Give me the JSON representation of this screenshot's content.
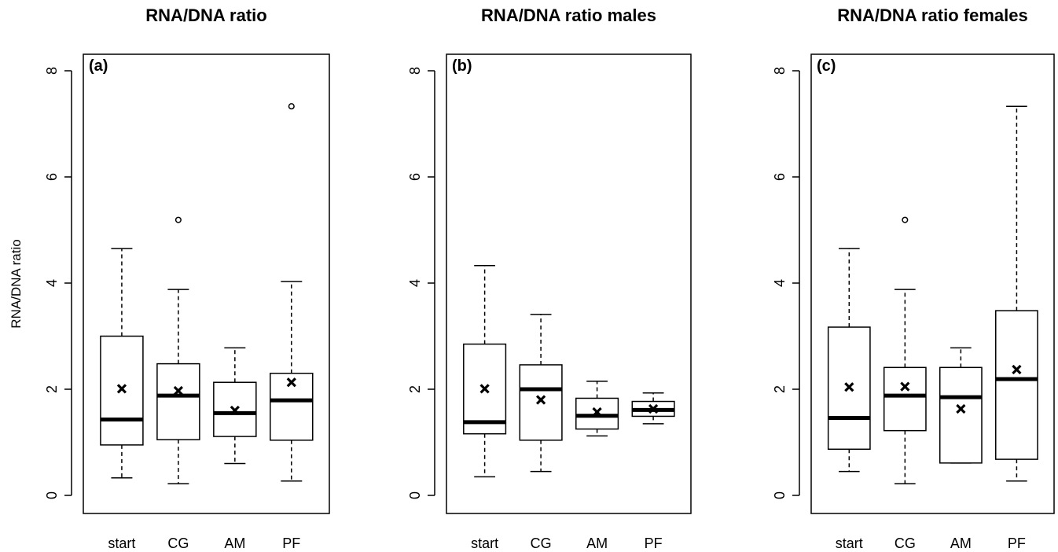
{
  "chart_data": [
    {
      "type": "box",
      "title": "RNA/DNA ratio",
      "panel_label": "(a)",
      "ylabel": "RNA/DNA ratio",
      "ylim": [
        0,
        8
      ],
      "yticks": [
        0,
        2,
        4,
        6,
        8
      ],
      "categories": [
        "start",
        "CG",
        "AM",
        "PF"
      ],
      "boxes": [
        {
          "category": "start",
          "min": 0.33,
          "q1": 0.95,
          "median": 1.43,
          "q3": 3.0,
          "max": 4.65,
          "mean": 2.01,
          "outliers": []
        },
        {
          "category": "CG",
          "min": 0.22,
          "q1": 1.05,
          "median": 1.88,
          "q3": 2.48,
          "max": 3.88,
          "mean": 1.97,
          "outliers": [
            5.19
          ]
        },
        {
          "category": "AM",
          "min": 0.6,
          "q1": 1.11,
          "median": 1.55,
          "q3": 2.13,
          "max": 2.78,
          "mean": 1.6,
          "outliers": []
        },
        {
          "category": "PF",
          "min": 0.27,
          "q1": 1.04,
          "median": 1.79,
          "q3": 2.3,
          "max": 4.03,
          "mean": 2.13,
          "outliers": [
            7.33
          ]
        }
      ]
    },
    {
      "type": "box",
      "title": "RNA/DNA ratio males",
      "panel_label": "(b)",
      "ylabel": "",
      "ylim": [
        0,
        8
      ],
      "yticks": [
        0,
        2,
        4,
        6,
        8
      ],
      "categories": [
        "start",
        "CG",
        "AM",
        "PF"
      ],
      "boxes": [
        {
          "category": "start",
          "min": 0.35,
          "q1": 1.16,
          "median": 1.38,
          "q3": 2.85,
          "max": 4.33,
          "mean": 2.01,
          "outliers": []
        },
        {
          "category": "CG",
          "min": 0.45,
          "q1": 1.04,
          "median": 2.0,
          "q3": 2.46,
          "max": 3.41,
          "mean": 1.8,
          "outliers": []
        },
        {
          "category": "AM",
          "min": 1.12,
          "q1": 1.25,
          "median": 1.5,
          "q3": 1.83,
          "max": 2.15,
          "mean": 1.57,
          "outliers": []
        },
        {
          "category": "PF",
          "min": 1.35,
          "q1": 1.49,
          "median": 1.61,
          "q3": 1.77,
          "max": 1.93,
          "mean": 1.63,
          "outliers": []
        }
      ]
    },
    {
      "type": "box",
      "title": "RNA/DNA ratio females",
      "panel_label": "(c)",
      "ylabel": "",
      "ylim": [
        0,
        8
      ],
      "yticks": [
        0,
        2,
        4,
        6,
        8
      ],
      "categories": [
        "start",
        "CG",
        "AM",
        "PF"
      ],
      "boxes": [
        {
          "category": "start",
          "min": 0.45,
          "q1": 0.87,
          "median": 1.46,
          "q3": 3.17,
          "max": 4.65,
          "mean": 2.04,
          "outliers": []
        },
        {
          "category": "CG",
          "min": 0.22,
          "q1": 1.22,
          "median": 1.88,
          "q3": 2.41,
          "max": 3.88,
          "mean": 2.05,
          "outliers": [
            5.19
          ]
        },
        {
          "category": "AM",
          "min": 0.61,
          "q1": 0.61,
          "median": 1.85,
          "q3": 2.41,
          "max": 2.78,
          "mean": 1.63,
          "outliers": []
        },
        {
          "category": "PF",
          "min": 0.27,
          "q1": 0.68,
          "median": 2.19,
          "q3": 3.48,
          "max": 7.33,
          "mean": 2.37,
          "outliers": []
        }
      ]
    }
  ]
}
